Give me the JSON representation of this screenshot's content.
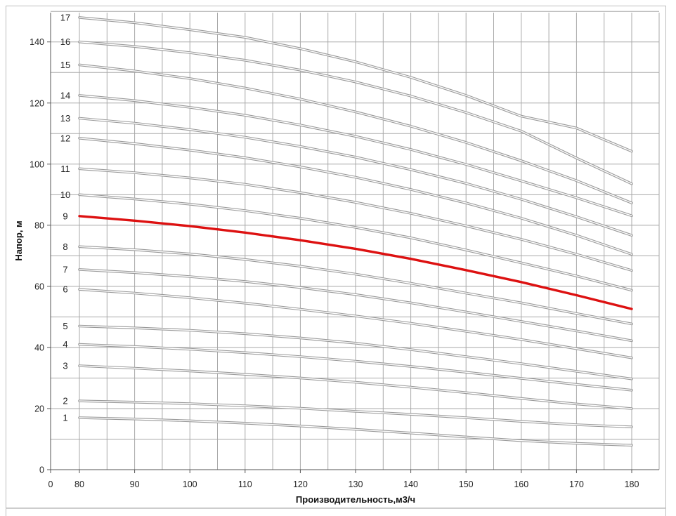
{
  "chart_data": {
    "type": "line",
    "title": "",
    "xlabel": "Производительность,м3/ч",
    "ylabel": "Напор, м",
    "xlim": [
      0,
      180
    ],
    "ylim": [
      0,
      150
    ],
    "x_ticks": [
      0,
      80,
      90,
      100,
      110,
      120,
      130,
      140,
      150,
      160,
      170,
      180
    ],
    "y_ticks": [
      0,
      20,
      40,
      60,
      80,
      100,
      120,
      140
    ],
    "grid": true,
    "legend": "none",
    "x": [
      80,
      90,
      100,
      110,
      120,
      130,
      140,
      150,
      160,
      170,
      180
    ],
    "highlight_series": "9",
    "colors": {
      "highlight": "#dd1111",
      "curve": "#9a9a9a",
      "grid": "#a8a8a8"
    },
    "series": [
      {
        "name": "1",
        "values": [
          17.0,
          16.6,
          16.0,
          15.2,
          14.3,
          13.2,
          12.0,
          10.7,
          9.5,
          8.6,
          8.0
        ]
      },
      {
        "name": "2",
        "values": [
          22.5,
          22.1,
          21.6,
          20.9,
          20.1,
          19.1,
          18.1,
          17.0,
          15.8,
          14.7,
          14.0
        ]
      },
      {
        "name": "3",
        "values": [
          34.0,
          33.2,
          32.3,
          31.2,
          30.0,
          28.6,
          27.0,
          25.2,
          23.3,
          21.5,
          20.0
        ]
      },
      {
        "name": "4",
        "values": [
          41.0,
          40.3,
          39.4,
          38.3,
          37.0,
          35.5,
          33.8,
          31.9,
          29.9,
          27.9,
          26.0
        ]
      },
      {
        "name": "5",
        "values": [
          47.0,
          46.4,
          45.6,
          44.5,
          43.1,
          41.4,
          39.3,
          37.0,
          34.7,
          32.2,
          29.7
        ]
      },
      {
        "name": "6",
        "values": [
          59.0,
          57.8,
          56.3,
          54.5,
          52.5,
          50.3,
          47.9,
          45.3,
          42.6,
          39.6,
          36.6
        ]
      },
      {
        "name": "7",
        "values": [
          65.5,
          64.5,
          63.2,
          61.6,
          59.6,
          57.3,
          54.6,
          51.6,
          48.5,
          45.4,
          42.2
        ]
      },
      {
        "name": "8",
        "values": [
          73.0,
          72.0,
          70.6,
          68.8,
          66.6,
          64.0,
          61.0,
          57.8,
          54.6,
          51.1,
          47.7
        ]
      },
      {
        "name": "9",
        "values": [
          83.0,
          81.5,
          79.7,
          77.6,
          75.1,
          72.3,
          69.0,
          65.3,
          61.4,
          57.1,
          52.6
        ]
      },
      {
        "name": "10",
        "values": [
          90.0,
          88.6,
          86.9,
          84.8,
          82.3,
          79.3,
          75.9,
          71.9,
          67.7,
          63.4,
          58.7
        ]
      },
      {
        "name": "11",
        "values": [
          98.5,
          97.2,
          95.5,
          93.4,
          90.7,
          87.5,
          83.9,
          79.8,
          75.4,
          70.5,
          65.2
        ]
      },
      {
        "name": "12",
        "values": [
          108.5,
          106.7,
          104.6,
          102.1,
          99.1,
          95.7,
          91.7,
          87.3,
          82.3,
          76.7,
          70.5
        ]
      },
      {
        "name": "13",
        "values": [
          115.0,
          113.4,
          111.3,
          108.8,
          105.8,
          102.3,
          98.2,
          93.7,
          88.5,
          82.8,
          76.7
        ]
      },
      {
        "name": "14",
        "values": [
          122.5,
          120.8,
          118.6,
          116.0,
          112.8,
          109.1,
          104.8,
          99.9,
          94.5,
          89.0,
          83.1
        ]
      },
      {
        "name": "15",
        "values": [
          132.5,
          130.5,
          128.0,
          124.9,
          121.3,
          117.1,
          112.4,
          107.1,
          101.1,
          94.6,
          87.3
        ]
      },
      {
        "name": "16",
        "values": [
          140.0,
          138.5,
          136.5,
          134.0,
          130.8,
          126.9,
          122.3,
          116.9,
          110.8,
          102.0,
          93.6
        ]
      },
      {
        "name": "17",
        "values": [
          148.0,
          146.3,
          144.0,
          141.5,
          137.8,
          133.5,
          128.4,
          122.5,
          115.7,
          111.8,
          104.2
        ]
      }
    ]
  }
}
